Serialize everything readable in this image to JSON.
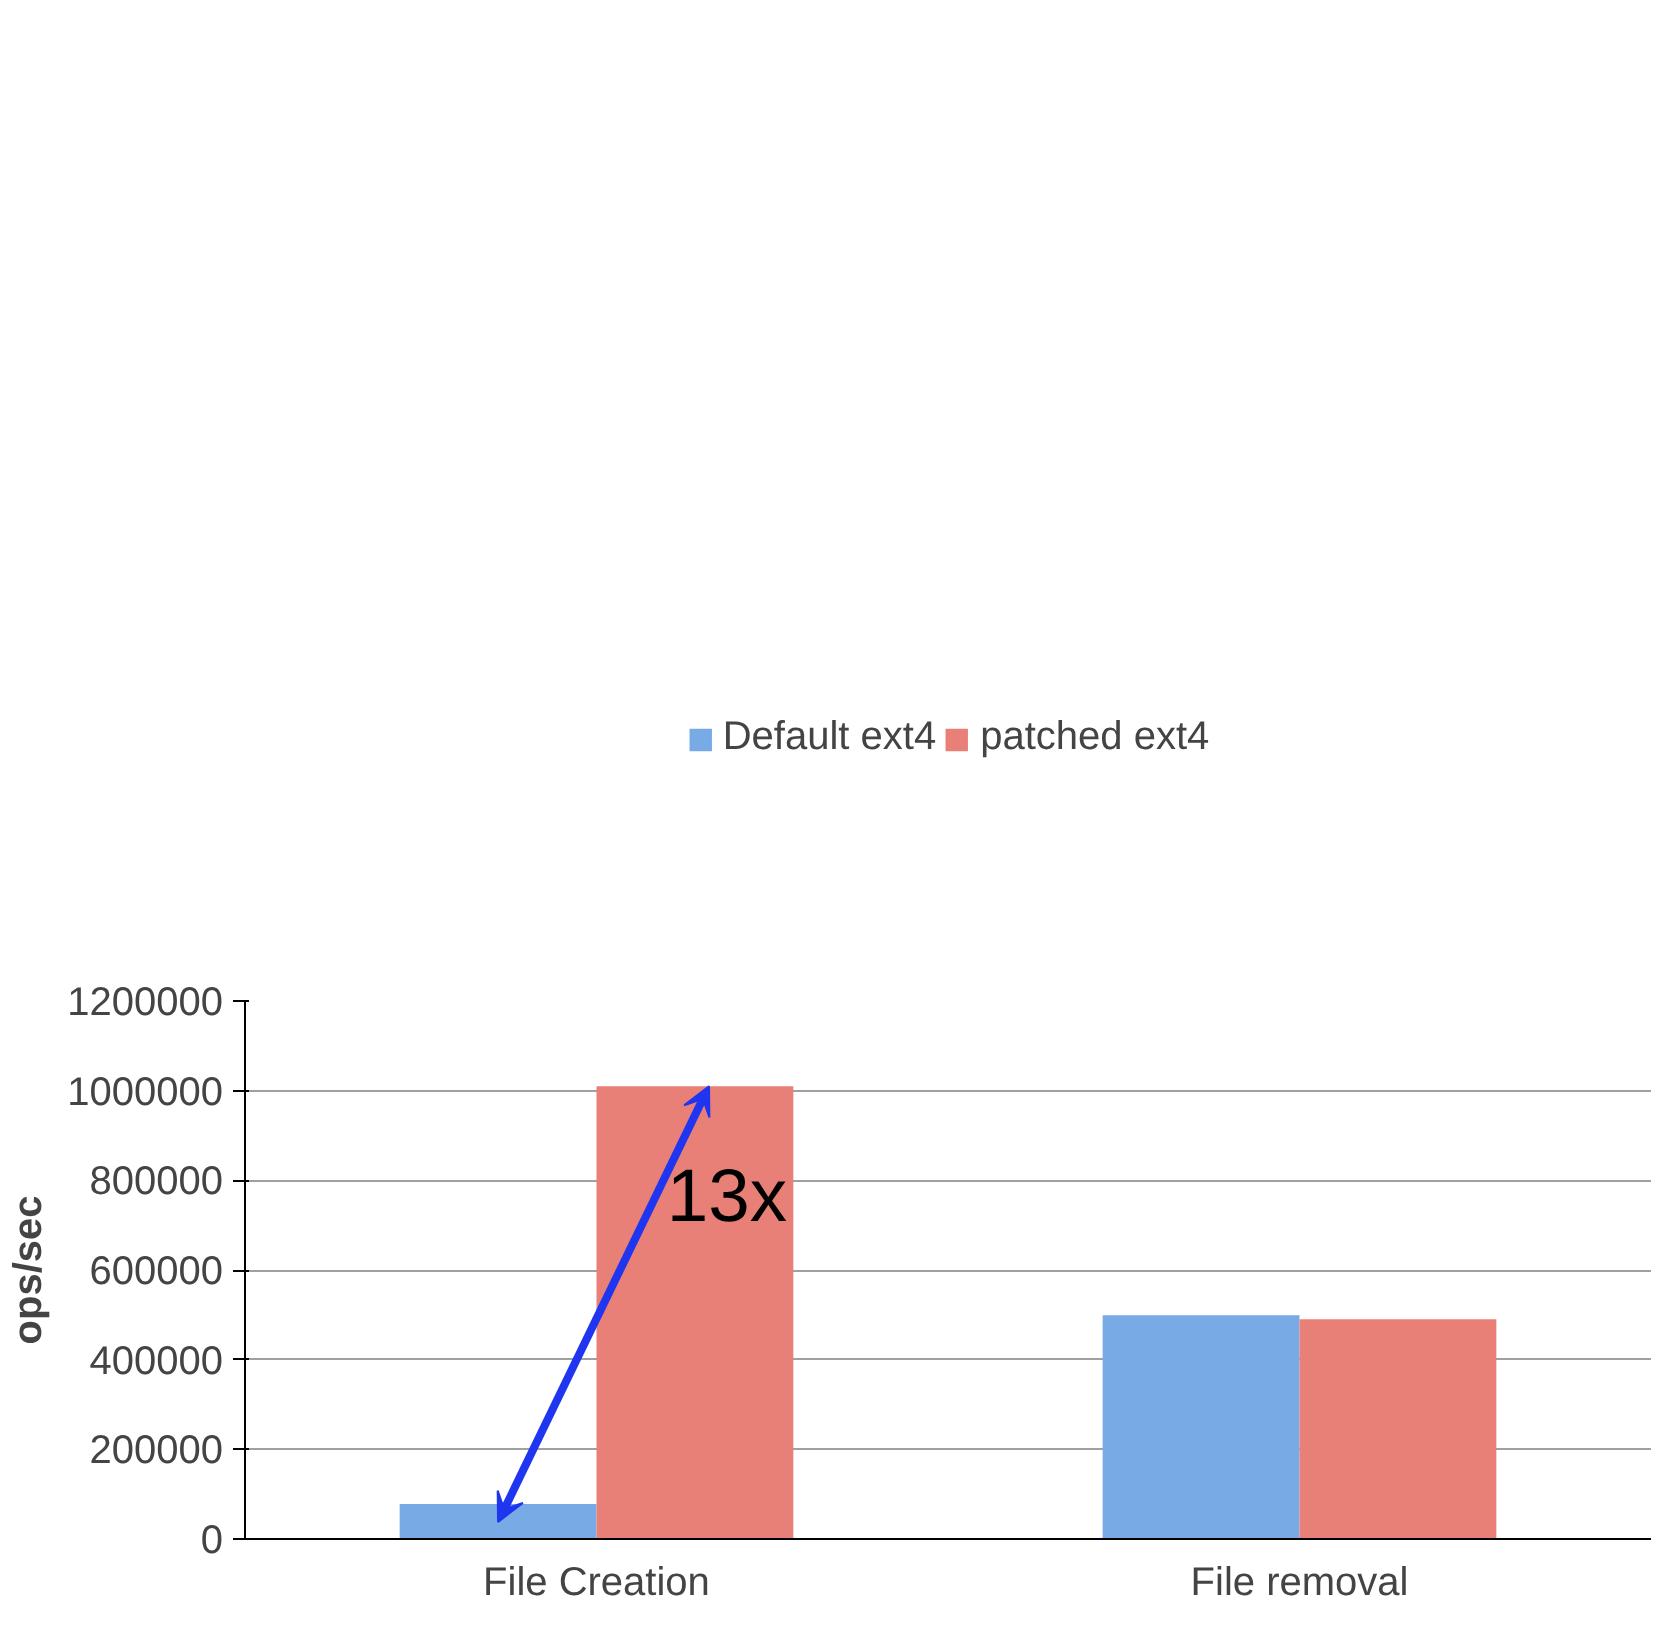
{
  "chart_data": {
    "type": "bar",
    "ylabel": "ops/sec",
    "categories": [
      "File Creation",
      "File removal"
    ],
    "series": [
      {
        "name": "Default ext4",
        "color": "#78aae6",
        "values": [
          78000,
          499000
        ]
      },
      {
        "name": "patched ext4",
        "color": "#e88078",
        "values": [
          1010000,
          490000
        ]
      }
    ],
    "ylim": [
      0,
      1200000
    ],
    "yticks": [
      0,
      200000,
      400000,
      600000,
      800000,
      1000000,
      1200000
    ],
    "grid": "y",
    "legend": "top",
    "annotations": [
      "13x"
    ]
  }
}
